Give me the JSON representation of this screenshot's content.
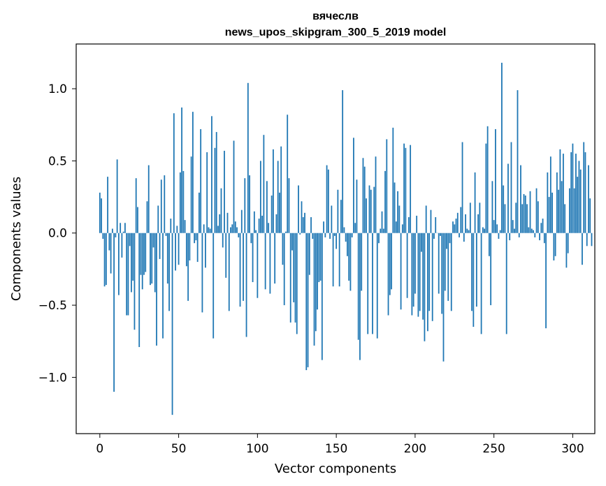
{
  "chart_data": {
    "type": "bar",
    "title": "вячеслв",
    "subtitle": "news_upos_skipgram_300_5_2019 model",
    "xlabel": "Vector components",
    "ylabel": "Components values",
    "xlim": [
      -15,
      314
    ],
    "ylim": [
      -1.39,
      1.31
    ],
    "xticks": [
      0,
      50,
      100,
      150,
      200,
      250,
      300
    ],
    "xtick_labels": [
      "0",
      "50",
      "100",
      "150",
      "200",
      "250",
      "300"
    ],
    "yticks": [
      -1.0,
      -0.5,
      0.0,
      0.5,
      1.0
    ],
    "ytick_labels": [
      "−1.0",
      "−0.5",
      "0.0",
      "0.5",
      "1.0"
    ],
    "grid": false,
    "bar_color": "#1f77b4",
    "values": [
      0.28,
      0.24,
      -0.04,
      -0.37,
      -0.36,
      0.39,
      -0.12,
      -0.28,
      0.03,
      -1.1,
      -0.03,
      0.51,
      -0.43,
      0.07,
      -0.17,
      0.01,
      0.07,
      -0.57,
      -0.57,
      -0.09,
      -0.41,
      -0.33,
      -0.67,
      0.38,
      0.18,
      -0.79,
      -0.29,
      -0.39,
      -0.29,
      -0.27,
      0.22,
      0.47,
      -0.36,
      -0.35,
      -0.1,
      -0.41,
      -0.78,
      0.19,
      -0.18,
      0.37,
      -0.73,
      0.4,
      -0.02,
      -0.35,
      -0.54,
      0.1,
      -1.26,
      0.83,
      -0.26,
      0.05,
      -0.22,
      0.42,
      0.87,
      0.43,
      0.09,
      -0.23,
      -0.47,
      -0.19,
      0.53,
      0.84,
      -0.07,
      -0.05,
      -0.2,
      0.28,
      0.72,
      -0.55,
      0.06,
      -0.24,
      0.56,
      0.04,
      0.03,
      0.81,
      -0.73,
      0.59,
      0.7,
      0.05,
      0.13,
      0.31,
      -0.1,
      0.57,
      -0.31,
      0.14,
      -0.54,
      0.04,
      0.06,
      0.64,
      0.08,
      0.04,
      -0.03,
      -0.51,
      0.16,
      -0.47,
      0.38,
      -0.72,
      1.04,
      0.4,
      -0.07,
      -0.34,
      0.15,
      0.02,
      -0.45,
      0.1,
      0.5,
      0.12,
      0.68,
      -0.39,
      0.36,
      0.07,
      -0.42,
      0.26,
      0.58,
      -0.35,
      0.13,
      0.5,
      0.28,
      0.6,
      -0.22,
      -0.5,
      0.01,
      0.82,
      0.38,
      -0.62,
      -0.12,
      -0.48,
      -0.62,
      -0.7,
      0.33,
      -0.01,
      0.22,
      0.11,
      0.14,
      -0.95,
      -0.93,
      -0.29,
      0.11,
      -0.04,
      -0.78,
      -0.68,
      -0.53,
      -0.34,
      -0.33,
      -0.88,
      0.08,
      -0.03,
      0.47,
      0.44,
      -0.04,
      0.19,
      -0.37,
      -0.02,
      -0.11,
      0.3,
      -0.37,
      0.23,
      0.99,
      0.04,
      -0.06,
      -0.16,
      -0.33,
      -0.4,
      -0.03,
      0.66,
      0.07,
      0.37,
      -0.74,
      -0.88,
      -0.4,
      0.52,
      0.46,
      0.24,
      -0.7,
      0.33,
      0.3,
      -0.7,
      0.32,
      0.53,
      -0.73,
      -0.07,
      0.03,
      0.15,
      0.03,
      0.43,
      0.65,
      -0.57,
      -0.43,
      -0.39,
      0.73,
      0.35,
      0.08,
      0.29,
      0.19,
      -0.53,
      0.06,
      0.62,
      0.59,
      -0.45,
      0.11,
      0.61,
      -0.57,
      -0.51,
      -0.42,
      0.12,
      -0.58,
      -0.54,
      -0.13,
      -0.6,
      -0.75,
      0.19,
      -0.68,
      -0.54,
      0.16,
      -0.61,
      -0.04,
      0.11,
      0.0,
      -0.42,
      -0.02,
      -0.56,
      -0.89,
      -0.4,
      -0.11,
      -0.47,
      -0.07,
      -0.54,
      0.08,
      0.06,
      0.1,
      0.14,
      -0.03,
      0.18,
      0.63,
      -0.06,
      0.13,
      0.03,
      0.02,
      0.21,
      -0.54,
      -0.65,
      0.42,
      -0.51,
      0.13,
      0.21,
      -0.7,
      0.04,
      0.03,
      0.62,
      0.74,
      -0.16,
      -0.5,
      0.36,
      0.09,
      0.72,
      0.06,
      -0.04,
      0.02,
      1.18,
      0.33,
      0.2,
      -0.7,
      0.48,
      -0.05,
      0.63,
      0.09,
      0.03,
      0.21,
      0.99,
      -0.03,
      0.47,
      0.2,
      0.27,
      0.26,
      0.2,
      0.04,
      0.29,
      0.03,
      0.02,
      -0.03,
      0.31,
      0.22,
      -0.05,
      0.07,
      0.1,
      -0.07,
      -0.66,
      0.42,
      0.25,
      0.53,
      0.28,
      -0.19,
      -0.16,
      0.42,
      0.3,
      0.58,
      0.36,
      0.55,
      0.2,
      -0.24,
      -0.14,
      0.31,
      0.56,
      0.62,
      0.31,
      0.55,
      0.39,
      0.5,
      0.44,
      -0.22,
      0.63,
      0.56,
      -0.09,
      0.47,
      0.24,
      -0.09
    ]
  }
}
